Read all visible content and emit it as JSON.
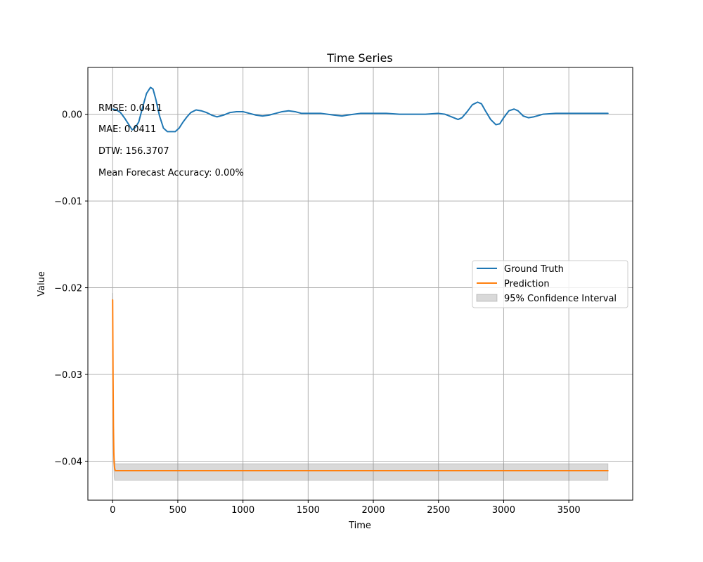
{
  "chart_data": {
    "type": "line",
    "title": "Time Series",
    "xlabel": "Time",
    "ylabel": "Value",
    "xlim": [
      -190,
      3990
    ],
    "ylim": [
      -0.0445,
      0.0054
    ],
    "xticks": [
      0,
      500,
      1000,
      1500,
      2000,
      2500,
      3000,
      3500
    ],
    "xtick_labels": [
      "0",
      "500",
      "1000",
      "1500",
      "2000",
      "2500",
      "3000",
      "3500"
    ],
    "yticks": [
      0.0,
      -0.01,
      -0.02,
      -0.03,
      -0.04
    ],
    "ytick_labels": [
      "0.00",
      "−0.01",
      "−0.02",
      "−0.03",
      "−0.04"
    ],
    "grid": true,
    "legend_position": "center-right",
    "annotations": [
      "RMSE: 0.0411",
      "MAE: 0.0411",
      "DTW: 156.3707",
      "Mean Forecast Accuracy: 0.00%"
    ],
    "series": [
      {
        "name": "Ground Truth",
        "color": "#1f77b4",
        "x": [
          0,
          30,
          60,
          90,
          120,
          150,
          175,
          200,
          230,
          260,
          290,
          310,
          330,
          360,
          390,
          420,
          450,
          480,
          510,
          540,
          570,
          600,
          640,
          680,
          720,
          760,
          800,
          850,
          900,
          950,
          1000,
          1050,
          1100,
          1150,
          1200,
          1250,
          1300,
          1350,
          1400,
          1450,
          1500,
          1600,
          1700,
          1760,
          1800,
          1900,
          2000,
          2100,
          2200,
          2300,
          2400,
          2500,
          2550,
          2600,
          2650,
          2680,
          2720,
          2760,
          2800,
          2830,
          2860,
          2900,
          2940,
          2970,
          3000,
          3040,
          3080,
          3110,
          3150,
          3190,
          3230,
          3300,
          3400,
          3500,
          3600,
          3700,
          3800
        ],
        "y": [
          0.0006,
          0.0005,
          0.0002,
          -0.0004,
          -0.0011,
          -0.0018,
          -0.0015,
          -0.0009,
          0.0008,
          0.0024,
          0.0031,
          0.0029,
          0.0018,
          -0.0002,
          -0.0016,
          -0.002,
          -0.002,
          -0.002,
          -0.0016,
          -0.0009,
          -0.0003,
          0.0002,
          0.0005,
          0.0004,
          0.0002,
          -0.0001,
          -0.0003,
          -0.0001,
          0.0002,
          0.0003,
          0.0003,
          0.0001,
          -0.0001,
          -0.0002,
          -0.0001,
          0.0001,
          0.0003,
          0.0004,
          0.0003,
          0.0001,
          0.0001,
          0.0001,
          -0.0001,
          -0.0002,
          -0.0001,
          0.0001,
          0.0001,
          0.0001,
          0.0,
          0.0,
          0.0,
          0.0001,
          0.0,
          -0.0003,
          -0.0006,
          -0.0004,
          0.0003,
          0.0011,
          0.0014,
          0.0012,
          0.0004,
          -0.0006,
          -0.0012,
          -0.0011,
          -0.0004,
          0.0004,
          0.0006,
          0.0004,
          -0.0002,
          -0.0004,
          -0.0003,
          0.0,
          0.0001,
          0.0001,
          0.0001,
          0.0001,
          0.0001
        ]
      },
      {
        "name": "Prediction",
        "color": "#ff7f0e",
        "x": [
          0,
          3,
          6,
          9,
          12,
          15,
          20,
          30,
          50,
          100,
          500,
          1000,
          2000,
          3000,
          3800
        ],
        "y": [
          -0.0214,
          -0.03,
          -0.036,
          -0.039,
          -0.0403,
          -0.0408,
          -0.0411,
          -0.0411,
          -0.0411,
          -0.0411,
          -0.0411,
          -0.0411,
          -0.0411,
          -0.0411,
          -0.0411
        ]
      }
    ],
    "confidence_band": {
      "name": "95% Confidence Interval",
      "color": "#808080",
      "x": [
        0,
        3,
        6,
        9,
        12,
        15,
        20,
        30,
        50,
        100,
        500,
        1000,
        2000,
        3000,
        3800
      ],
      "upper": [
        -0.0206,
        -0.0292,
        -0.0352,
        -0.0382,
        -0.0395,
        -0.04,
        -0.0403,
        -0.0403,
        -0.0403,
        -0.0403,
        -0.0403,
        -0.0403,
        -0.0403,
        -0.0403,
        -0.0403
      ],
      "lower": [
        -0.0222,
        -0.031,
        -0.037,
        -0.0405,
        -0.0418,
        -0.0422,
        -0.0422,
        -0.0422,
        -0.0422,
        -0.0422,
        -0.0422,
        -0.0422,
        -0.0422,
        -0.0422,
        -0.0422
      ]
    }
  }
}
